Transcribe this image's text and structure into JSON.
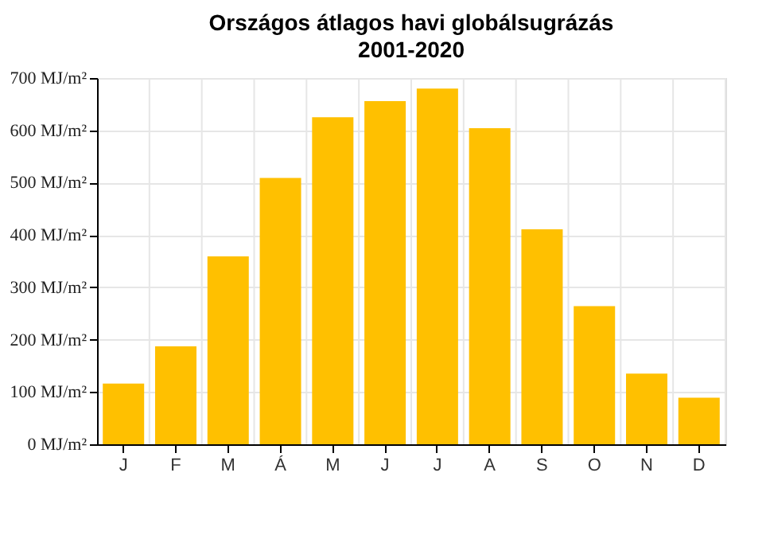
{
  "chart_data": {
    "type": "bar",
    "title": "Országos átlagos havi globálsugrázás",
    "subtitle": "2001-2020",
    "categories": [
      "J",
      "F",
      "M",
      "Á",
      "M",
      "J",
      "J",
      "A",
      "S",
      "O",
      "N",
      "D"
    ],
    "values": [
      116,
      187,
      359,
      509,
      625,
      656,
      680,
      604,
      411,
      264,
      135,
      89
    ],
    "color": "#ffc000",
    "ylim": [
      0,
      700
    ],
    "yticks": [
      {
        "value": 0,
        "label": "0 MJ/m²"
      },
      {
        "value": 100,
        "label": "100 MJ/m²"
      },
      {
        "value": 200,
        "label": "200 MJ/m²"
      },
      {
        "value": 300,
        "label": "300 MJ/m²"
      },
      {
        "value": 400,
        "label": "400 MJ/m²"
      },
      {
        "value": 500,
        "label": "500 MJ/m²"
      },
      {
        "value": 600,
        "label": "600 MJ/m²"
      },
      {
        "value": 700,
        "label": "700 MJ/m²"
      }
    ],
    "grid": true
  }
}
